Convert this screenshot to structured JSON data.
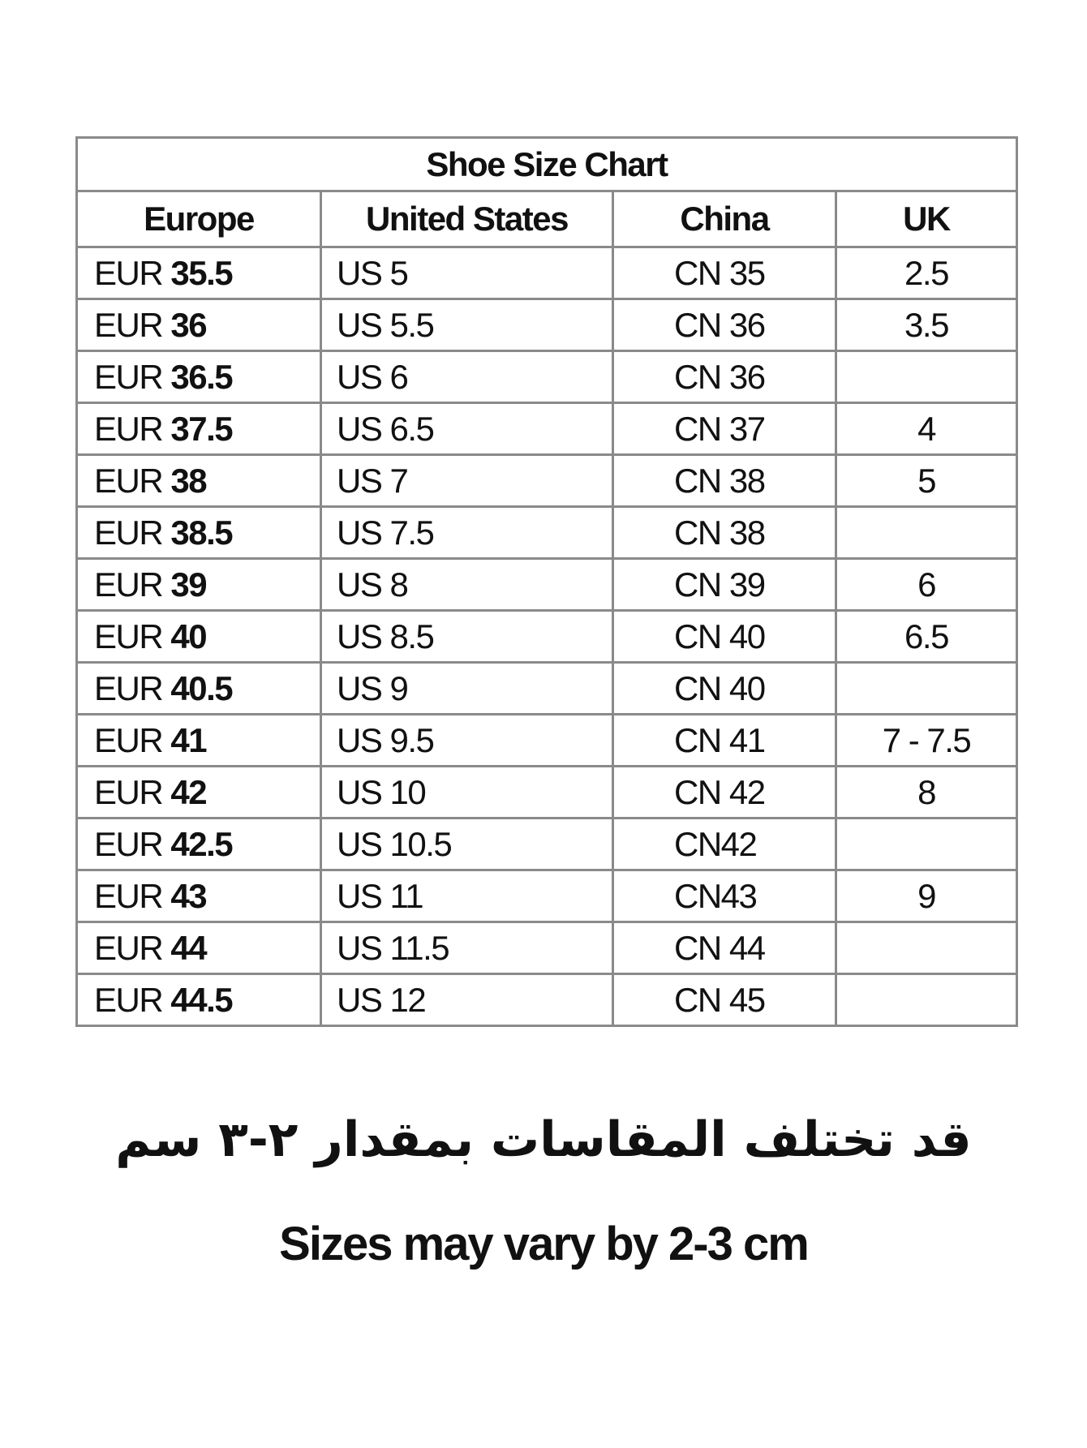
{
  "table": {
    "title": "Shoe Size Chart",
    "headers": [
      "Europe",
      "United States",
      "China",
      "UK"
    ],
    "rows": [
      {
        "eu_prefix": "EUR",
        "eu": "35.5",
        "us": "US 5",
        "cn": "CN 35",
        "uk": "2.5"
      },
      {
        "eu_prefix": "EUR",
        "eu": "36",
        "us": "US 5.5",
        "cn": "CN 36",
        "uk": "3.5"
      },
      {
        "eu_prefix": "EUR",
        "eu": "36.5",
        "us": "US 6",
        "cn": "CN 36",
        "uk": ""
      },
      {
        "eu_prefix": "EUR",
        "eu": "37.5",
        "us": "US 6.5",
        "cn": "CN 37",
        "uk": "4"
      },
      {
        "eu_prefix": "EUR",
        "eu": "38",
        "us": "US 7",
        "cn": "CN 38",
        "uk": "5"
      },
      {
        "eu_prefix": "EUR",
        "eu": "38.5",
        "us": "US 7.5",
        "cn": "CN 38",
        "uk": ""
      },
      {
        "eu_prefix": "EUR",
        "eu": "39",
        "us": "US 8",
        "cn": "CN 39",
        "uk": "6"
      },
      {
        "eu_prefix": "EUR",
        "eu": "40",
        "us": "US 8.5",
        "cn": "CN 40",
        "uk": "6.5"
      },
      {
        "eu_prefix": "EUR",
        "eu": "40.5",
        "us": "US 9",
        "cn": "CN 40",
        "uk": ""
      },
      {
        "eu_prefix": "EUR",
        "eu": "41",
        "us": "US 9.5",
        "cn": "CN 41",
        "uk": "7 - 7.5"
      },
      {
        "eu_prefix": "EUR",
        "eu": "42",
        "us": "US 10",
        "cn": "CN 42",
        "uk": "8"
      },
      {
        "eu_prefix": "EUR",
        "eu": "42.5",
        "us": "US 10.5",
        "cn": "CN42",
        "uk": ""
      },
      {
        "eu_prefix": "EUR",
        "eu": "43",
        "us": "US 11",
        "cn": "CN43",
        "uk": "9"
      },
      {
        "eu_prefix": "EUR",
        "eu": "44",
        "us": "US 11.5",
        "cn": "CN 44",
        "uk": ""
      },
      {
        "eu_prefix": "EUR",
        "eu": "44.5",
        "us": "US 12",
        "cn": "CN 45",
        "uk": ""
      }
    ]
  },
  "note_arabic": "قد تختلف المقاسات بمقدار ٢-٣ سم",
  "note_english": "Sizes may vary by  2-3  cm"
}
